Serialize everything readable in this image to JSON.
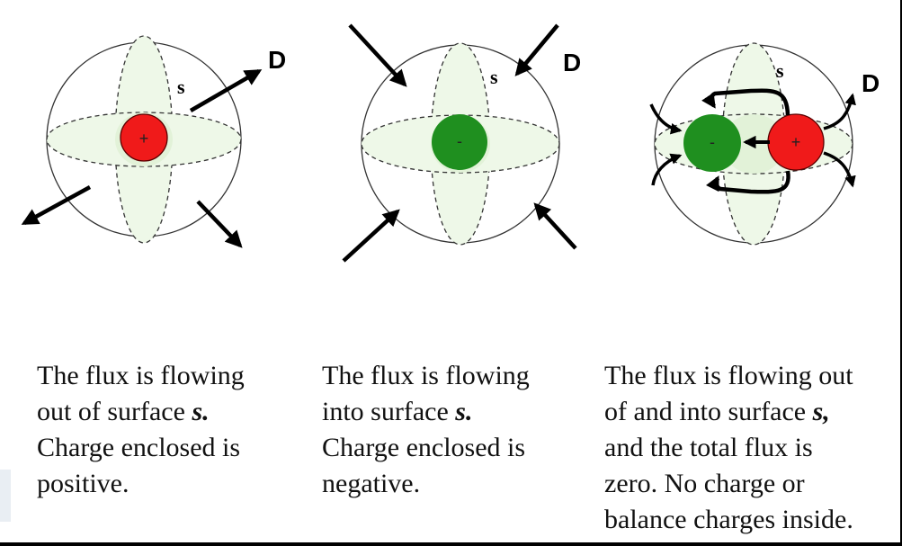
{
  "colors": {
    "positive_charge": "#f01a1a",
    "negative_charge": "#1f8f1f",
    "surface_fill": "#eef8e8",
    "flux_arrow": "#000000"
  },
  "labels": {
    "surface": "s",
    "field": "D",
    "plus": "+",
    "minus": "-"
  },
  "panels": [
    {
      "caption": [
        "The flux is flowing",
        "out of surface ",
        "Charge enclosed is",
        "positive."
      ],
      "caption_italic": "s."
    },
    {
      "caption": [
        "The flux is flowing",
        "into surface ",
        "Charge enclosed is",
        "negative."
      ],
      "caption_italic": "s."
    },
    {
      "caption": [
        "The flux is flowing out",
        "of and into surface ",
        "and the total flux is",
        "zero. No charge or",
        "balance charges inside."
      ],
      "caption_italic": "s,"
    }
  ]
}
